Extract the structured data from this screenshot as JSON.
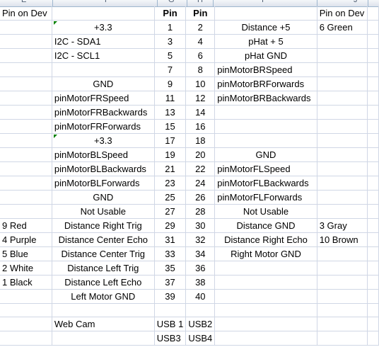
{
  "sheet": {
    "column_headers": [
      "E",
      "F",
      "G",
      "H",
      "I",
      "J"
    ],
    "columns": [
      {
        "key": "dev_left",
        "name": "col-e"
      },
      {
        "key": "left_label",
        "name": "col-f"
      },
      {
        "key": "pin_left",
        "name": "col-g"
      },
      {
        "key": "pin_right",
        "name": "col-h"
      },
      {
        "key": "right_label",
        "name": "col-i"
      },
      {
        "key": "dev_right",
        "name": "col-j"
      }
    ],
    "rows": [
      {
        "dev_left": "Pin on Dev",
        "left_label": "",
        "pin_left": "Pin",
        "pin_right": "Pin",
        "right_label": "",
        "dev_right": "Pin on Dev"
      },
      {
        "dev_left": "",
        "left_label": "+3.3",
        "pin_left": "1",
        "pin_right": "2",
        "right_label": "Distance +5",
        "dev_right": "6 Green"
      },
      {
        "dev_left": "",
        "left_label": "I2C - SDA1",
        "pin_left": "3",
        "pin_right": "4",
        "right_label": "pHat + 5",
        "dev_right": ""
      },
      {
        "dev_left": "",
        "left_label": "I2C - SCL1",
        "pin_left": "5",
        "pin_right": "6",
        "right_label": "pHat GND",
        "dev_right": ""
      },
      {
        "dev_left": "",
        "left_label": "",
        "pin_left": "7",
        "pin_right": "8",
        "right_label": "pinMotorBRSpeed",
        "dev_right": ""
      },
      {
        "dev_left": "",
        "left_label": "GND",
        "pin_left": "9",
        "pin_right": "10",
        "right_label": "pinMotorBRForwards",
        "dev_right": ""
      },
      {
        "dev_left": "",
        "left_label": "pinMotorFRSpeed",
        "pin_left": "11",
        "pin_right": "12",
        "right_label": "pinMotorBRBackwards",
        "dev_right": ""
      },
      {
        "dev_left": "",
        "left_label": "pinMotorFRBackwards",
        "pin_left": "13",
        "pin_right": "14",
        "right_label": "",
        "dev_right": ""
      },
      {
        "dev_left": "",
        "left_label": "pinMotorFRForwards",
        "pin_left": "15",
        "pin_right": "16",
        "right_label": "",
        "dev_right": ""
      },
      {
        "dev_left": "",
        "left_label": "+3.3",
        "pin_left": "17",
        "pin_right": "18",
        "right_label": "",
        "dev_right": ""
      },
      {
        "dev_left": "",
        "left_label": "pinMotorBLSpeed",
        "pin_left": "19",
        "pin_right": "20",
        "right_label": "GND",
        "dev_right": ""
      },
      {
        "dev_left": "",
        "left_label": "pinMotorBLBackwards",
        "pin_left": "21",
        "pin_right": "22",
        "right_label": "pinMotorFLSpeed",
        "dev_right": ""
      },
      {
        "dev_left": "",
        "left_label": "pinMotorBLForwards",
        "pin_left": "23",
        "pin_right": "24",
        "right_label": "pinMotorFLBackwards",
        "dev_right": ""
      },
      {
        "dev_left": "",
        "left_label": "GND",
        "pin_left": "25",
        "pin_right": "26",
        "right_label": "pinMotorFLForwards",
        "dev_right": ""
      },
      {
        "dev_left": "",
        "left_label": "Not Usable",
        "pin_left": "27",
        "pin_right": "28",
        "right_label": "Not Usable",
        "dev_right": ""
      },
      {
        "dev_left": "9 Red",
        "left_label": "Distance Right Trig",
        "pin_left": "29",
        "pin_right": "30",
        "right_label": "Distance GND",
        "dev_right": "3 Gray"
      },
      {
        "dev_left": "4 Purple",
        "left_label": "Distance Center Echo",
        "pin_left": "31",
        "pin_right": "32",
        "right_label": "Distance Right Echo",
        "dev_right": "10 Brown"
      },
      {
        "dev_left": "5 Blue",
        "left_label": "Distance Center Trig",
        "pin_left": "33",
        "pin_right": "34",
        "right_label": "Right Motor GND",
        "dev_right": ""
      },
      {
        "dev_left": "2 White",
        "left_label": "Distance Left Trig",
        "pin_left": "35",
        "pin_right": "36",
        "right_label": "",
        "dev_right": ""
      },
      {
        "dev_left": "1 Black",
        "left_label": "Distance Left Echo",
        "pin_left": "37",
        "pin_right": "38",
        "right_label": "",
        "dev_right": ""
      },
      {
        "dev_left": "",
        "left_label": "Left Motor GND",
        "pin_left": "39",
        "pin_right": "40",
        "right_label": "",
        "dev_right": ""
      },
      {
        "dev_left": "",
        "left_label": "",
        "pin_left": "",
        "pin_right": "",
        "right_label": "",
        "dev_right": ""
      },
      {
        "dev_left": "",
        "left_label": "Web Cam",
        "pin_left": "USB 1",
        "pin_right": "USB2",
        "right_label": "",
        "dev_right": ""
      },
      {
        "dev_left": "",
        "left_label": "",
        "pin_left": "USB3",
        "pin_right": "USB4",
        "right_label": "",
        "dev_right": ""
      }
    ]
  }
}
